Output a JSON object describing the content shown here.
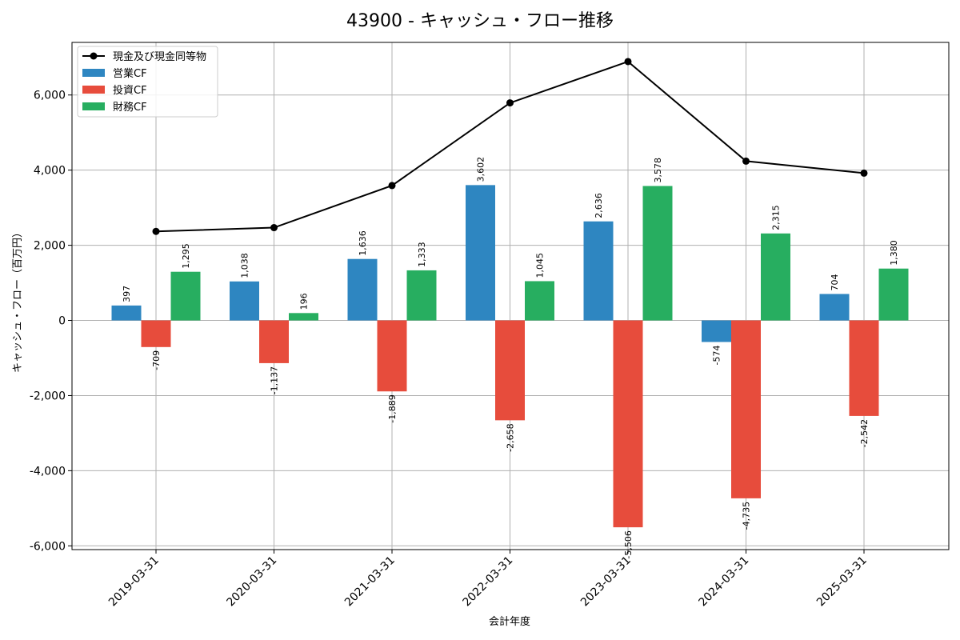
{
  "chart_data": {
    "type": "bar",
    "title": "43900 - キャッシュ・フロー推移",
    "xlabel": "会計年度",
    "ylabel": "キャッシュ・フロー（百万円）",
    "categories": [
      "2019-03-31",
      "2020-03-31",
      "2021-03-31",
      "2022-03-31",
      "2023-03-31",
      "2024-03-31",
      "2025-03-31"
    ],
    "ylim": [
      -6100,
      7400
    ],
    "yticks": [
      -6000,
      -4000,
      -2000,
      0,
      2000,
      4000,
      6000
    ],
    "ytick_labels": [
      "-6,000",
      "-4,000",
      "-2,000",
      "0",
      "2,000",
      "4,000",
      "6,000"
    ],
    "grid": true,
    "legend_position": "top-left",
    "series": [
      {
        "name": "営業CF",
        "kind": "bar",
        "color": "#2e86c1",
        "values": [
          397,
          1038,
          1636,
          3602,
          2636,
          -574,
          704
        ],
        "labels": [
          "397",
          "1,038",
          "1,636",
          "3,602",
          "2,636",
          "-574",
          "704"
        ]
      },
      {
        "name": "投資CF",
        "kind": "bar",
        "color": "#e74c3c",
        "values": [
          -709,
          -1137,
          -1889,
          -2658,
          -5506,
          -4735,
          -2542
        ],
        "labels": [
          "-709",
          "-1,137",
          "-1,889",
          "-2,658",
          "-5,506",
          "-4,735",
          "-2,542"
        ]
      },
      {
        "name": "財務CF",
        "kind": "bar",
        "color": "#27ae60",
        "values": [
          1295,
          196,
          1333,
          1045,
          3578,
          2315,
          1380
        ],
        "labels": [
          "1,295",
          "196",
          "1,333",
          "1,045",
          "3,578",
          "2,315",
          "1,380"
        ]
      },
      {
        "name": "現金及び現金同等物",
        "kind": "line",
        "color": "#000000",
        "values": [
          2370,
          2470,
          3590,
          5790,
          6890,
          4240,
          3920
        ]
      }
    ]
  }
}
